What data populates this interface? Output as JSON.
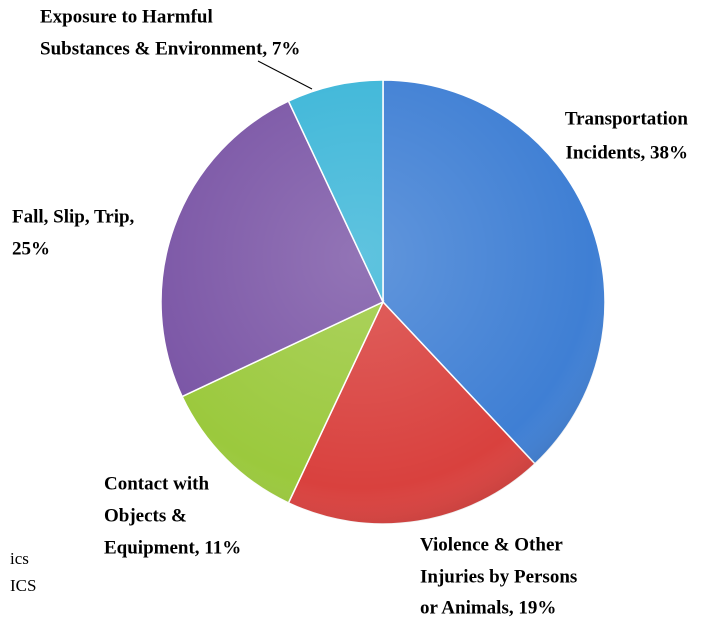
{
  "chart_data": {
    "type": "pie",
    "values": [
      38,
      19,
      11,
      25,
      7
    ],
    "value_labels": [
      [
        "Transportation",
        "Incidents, 38%"
      ],
      [
        "Violence & Other",
        "Injuries by Persons",
        "or Animals, 19%"
      ],
      [
        "Contact with",
        "Objects &",
        "Equipment, 11%"
      ],
      [
        "Fall, Slip, Trip,",
        "25%"
      ],
      [
        "Exposure to Harmful",
        "Substances & Environment, 7%"
      ]
    ],
    "colors": [
      "#3f7fd4",
      "#d9413e",
      "#9bc93d",
      "#7b56a6",
      "#3cb6d8"
    ],
    "annotations": [
      "ics",
      "ICS"
    ]
  }
}
